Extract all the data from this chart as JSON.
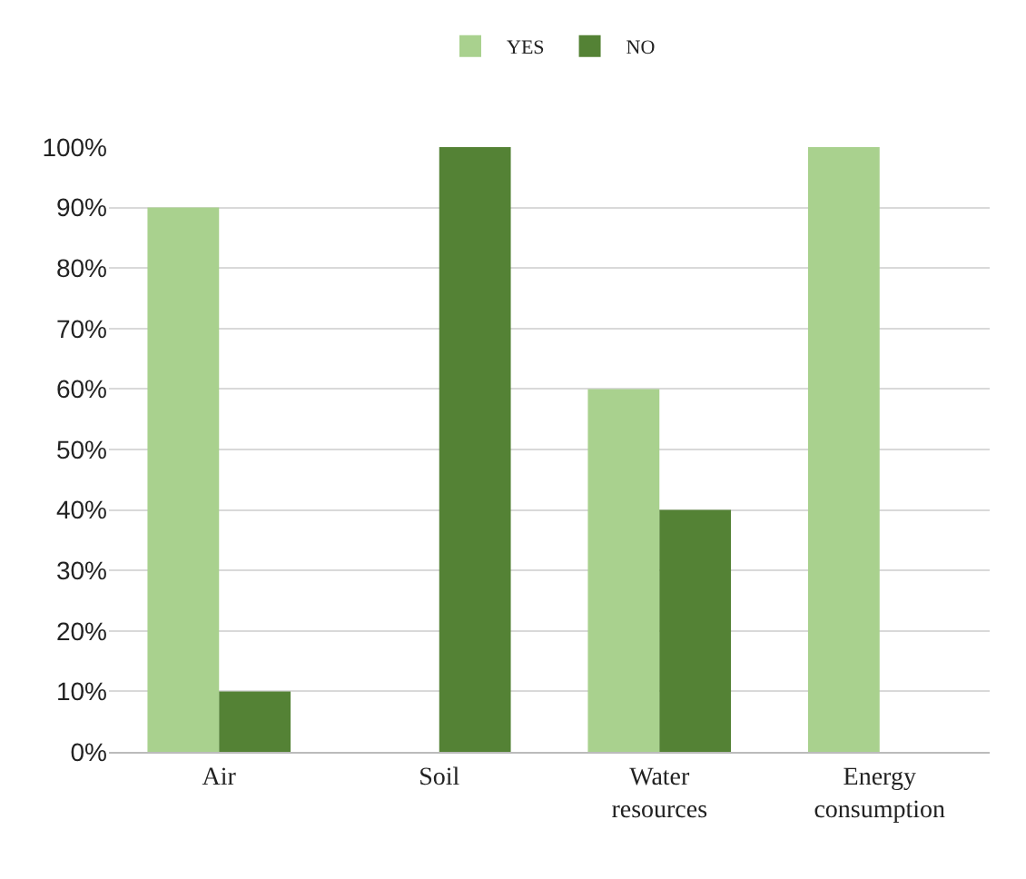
{
  "chart_data": {
    "type": "bar",
    "categories": [
      "Air",
      "Soil",
      "Water resources",
      "Energy consumption"
    ],
    "series": [
      {
        "name": "YES",
        "color": "#a9d18e",
        "values": [
          90,
          0,
          60,
          100
        ]
      },
      {
        "name": "NO",
        "color": "#548235",
        "values": [
          10,
          100,
          40,
          0
        ]
      }
    ],
    "ylim": [
      0,
      100
    ],
    "yticks": [
      {
        "value": 0,
        "label": "0%"
      },
      {
        "value": 10,
        "label": "10%"
      },
      {
        "value": 20,
        "label": "20%"
      },
      {
        "value": 30,
        "label": "30%"
      },
      {
        "value": 40,
        "label": "40%"
      },
      {
        "value": 50,
        "label": "50%"
      },
      {
        "value": 60,
        "label": "60%"
      },
      {
        "value": 70,
        "label": "70%"
      },
      {
        "value": 80,
        "label": "80%"
      },
      {
        "value": 90,
        "label": "90%"
      },
      {
        "value": 100,
        "label": "100%"
      }
    ],
    "grid": "y",
    "legend": "top"
  }
}
